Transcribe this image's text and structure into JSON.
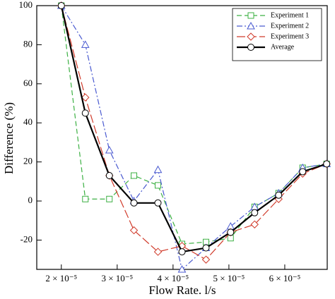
{
  "chart_data": {
    "type": "line",
    "x_label": "Flow Rate. l/s",
    "y_label": "Difference (%)",
    "x": [
      2e-05,
      2.43e-05,
      2.86e-05,
      3.3e-05,
      3.73e-05,
      4.16e-05,
      4.59e-05,
      5.03e-05,
      5.46e-05,
      5.89e-05,
      6.32e-05,
      6.75e-05
    ],
    "series": [
      {
        "name": "Experiment 1",
        "color": "#3cb043",
        "dash": "7,4",
        "marker": "square",
        "width": 1.2,
        "values": [
          100,
          1,
          1,
          13,
          8,
          -22,
          -21,
          -19,
          -3,
          4,
          17,
          19
        ]
      },
      {
        "name": "Experiment 2",
        "color": "#4a5ad0",
        "dash": "8,3,2,3",
        "marker": "triangle",
        "width": 1.2,
        "values": [
          100,
          80,
          26,
          0,
          16,
          -35,
          -24,
          -13,
          -3,
          4,
          17,
          19
        ]
      },
      {
        "name": "Experiment 3",
        "color": "#d03a2a",
        "dash": "12,4",
        "marker": "diamond",
        "width": 1.2,
        "values": [
          100,
          53,
          13,
          -15,
          -26,
          -23,
          -30,
          -16,
          -12,
          1,
          14,
          19
        ]
      },
      {
        "name": "Average",
        "color": "#000000",
        "dash": "none",
        "marker": "circle",
        "width": 2.2,
        "values": [
          100,
          45,
          13,
          -1,
          -1,
          -26,
          -24,
          -16,
          -6,
          3,
          15,
          19
        ]
      }
    ],
    "xlim": [
      1.56e-05,
      6.76e-05
    ],
    "ylim": [
      -35,
      100
    ],
    "xticks": [
      {
        "value": 2e-05,
        "label": "2 × 10⁻⁵"
      },
      {
        "value": 3e-05,
        "label": "3 × 10⁻⁵"
      },
      {
        "value": 4e-05,
        "label": "4 × 10⁻⁵"
      },
      {
        "value": 5e-05,
        "label": "5 × 10⁻⁵"
      },
      {
        "value": 6e-05,
        "label": "6 × 10⁻⁵"
      }
    ],
    "yticks": [
      -20,
      0,
      20,
      40,
      60,
      80,
      100
    ],
    "legend": "upper right",
    "grid": false
  }
}
